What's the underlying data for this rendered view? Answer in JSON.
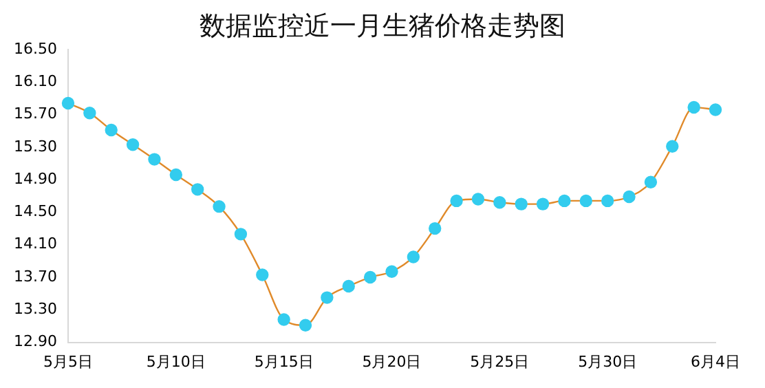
{
  "chart_data": {
    "type": "line",
    "title": "数据监控近一月生猪价格走势图",
    "categories": [
      "5月5日",
      null,
      null,
      null,
      null,
      "5月10日",
      null,
      null,
      null,
      null,
      "5月15日",
      null,
      null,
      null,
      null,
      "5月20日",
      null,
      null,
      null,
      null,
      "5月25日",
      null,
      null,
      null,
      null,
      "5月30日",
      null,
      null,
      null,
      null,
      "6月4日"
    ],
    "series": [
      {
        "color": "#e08a2a",
        "colors": [
          "#33ccee",
          "#33ccee",
          "#33ccee",
          "#33ccee",
          "#33ccee",
          "#33ccee",
          "#33ccee",
          "#33ccee",
          "#33ccee",
          "#33ccee",
          "#33ccee",
          "#33ccee",
          "#33ccee",
          "#33ccee",
          "#33ccee",
          "#33ccee",
          "#33ccee",
          "#33ccee",
          "#33ccee",
          "#33ccee",
          "#33ccee",
          "#33ccee",
          "#33ccee",
          "#33ccee",
          "#33ccee",
          "#33ccee",
          "#33ccee",
          "#33ccee",
          "#33ccee",
          "#33ccee",
          "#33ccee"
        ],
        "values": [
          15.84,
          15.72,
          15.51,
          15.33,
          15.15,
          14.96,
          14.78,
          14.57,
          14.23,
          13.73,
          13.18,
          13.11,
          13.45,
          13.59,
          13.7,
          13.77,
          13.95,
          14.3,
          14.64,
          14.66,
          14.62,
          14.6,
          14.6,
          14.64,
          14.64,
          14.64,
          14.69,
          14.87,
          15.31,
          15.79,
          15.76
        ]
      }
    ],
    "ylim": [
      12.9,
      16.5
    ],
    "yticks": [
      {
        "value": 12.9,
        "label": "12.90"
      },
      {
        "value": 13.3,
        "label": "13.30"
      },
      {
        "value": 13.7,
        "label": "13.70"
      },
      {
        "value": 14.1,
        "label": "14.10"
      },
      {
        "value": 14.5,
        "label": "14.50"
      },
      {
        "value": 14.9,
        "label": "14.90"
      },
      {
        "value": 15.3,
        "label": "15.30"
      },
      {
        "value": 15.7,
        "label": "15.70"
      },
      {
        "value": 16.1,
        "label": "16.10"
      },
      {
        "value": 16.5,
        "label": "16.50"
      }
    ],
    "marker": "circle",
    "grid": false,
    "legend": false
  }
}
